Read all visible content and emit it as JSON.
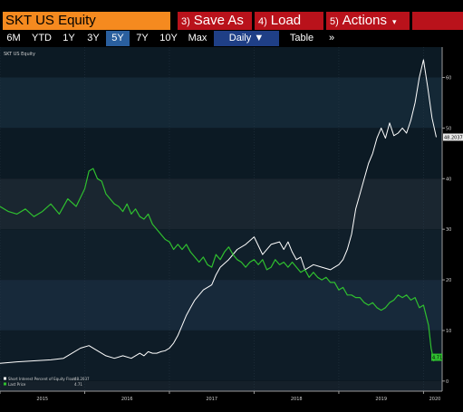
{
  "command_bar": {
    "ticker": "SKT US Equity",
    "save_as": {
      "num": "3)",
      "label": "Save As"
    },
    "load": {
      "num": "4)",
      "label": "Load"
    },
    "actions": {
      "num": "5)",
      "label": "Actions",
      "caret": "▾"
    }
  },
  "range_bar": {
    "items": [
      "6M",
      "YTD",
      "1Y",
      "3Y",
      "5Y",
      "7Y",
      "10Y",
      "Max"
    ],
    "active": "5Y",
    "frequency": "Daily",
    "frequency_caret": "▼",
    "table": "Table",
    "more": "»"
  },
  "colors": {
    "ticker_bg": "#f58a1f",
    "button_red": "#b9121b",
    "active_blue": "#2a5f9e",
    "series_short_interest": "#ffffff",
    "series_price": "#2fbf2f",
    "value_tag": "#e8e8e8",
    "price_tag": "#2fbf2f"
  },
  "chart_data": {
    "type": "line",
    "title": "SKT US Equity",
    "x_ticks": [
      "2015",
      "2016",
      "2017",
      "2018",
      "2019",
      "2020"
    ],
    "y_ticks": [
      "0",
      "10",
      "20",
      "30",
      "40",
      "50",
      "60"
    ],
    "ylim": [
      -2,
      66
    ],
    "xlim": [
      2015.0,
      2020.22
    ],
    "grid": true,
    "legend_position": "bottom-left",
    "last_value_tags": {
      "short_interest": "48.2037",
      "price": "4.71"
    },
    "series": [
      {
        "name": "Short Interest Percent of Equity Float",
        "legend_value": "48.2037",
        "color": "#ffffff",
        "x": [
          2015.0,
          2015.2,
          2015.4,
          2015.6,
          2015.75,
          2015.85,
          2015.95,
          2016.05,
          2016.15,
          2016.25,
          2016.35,
          2016.45,
          2016.55,
          2016.65,
          2016.7,
          2016.75,
          2016.8,
          2016.85,
          2016.9,
          2016.95,
          2017.0,
          2017.05,
          2017.1,
          2017.15,
          2017.2,
          2017.25,
          2017.3,
          2017.4,
          2017.5,
          2017.55,
          2017.6,
          2017.7,
          2017.8,
          2017.9,
          2018.0,
          2018.1,
          2018.2,
          2018.3,
          2018.35,
          2018.4,
          2018.45,
          2018.5,
          2018.55,
          2018.6,
          2018.7,
          2018.8,
          2018.9,
          2018.95,
          2019.0,
          2019.05,
          2019.1,
          2019.15,
          2019.2,
          2019.25,
          2019.3,
          2019.35,
          2019.4,
          2019.45,
          2019.5,
          2019.55,
          2019.6,
          2019.65,
          2019.7,
          2019.75,
          2019.8,
          2019.85,
          2019.9,
          2019.95,
          2020.0,
          2020.05,
          2020.1,
          2020.15
        ],
        "y": [
          3.5,
          3.8,
          4.0,
          4.2,
          4.5,
          5.5,
          6.5,
          7.0,
          6.0,
          5.0,
          4.5,
          5.0,
          4.5,
          5.5,
          5.0,
          5.8,
          5.5,
          5.5,
          5.8,
          6.0,
          6.5,
          7.5,
          9.0,
          11.0,
          13.0,
          14.5,
          16.0,
          18.0,
          19.0,
          21.0,
          22.5,
          24.0,
          26.0,
          27.0,
          28.5,
          25.0,
          27.0,
          27.5,
          26.0,
          27.5,
          25.5,
          24.0,
          24.5,
          22.0,
          23.0,
          22.5,
          22.0,
          22.5,
          23.0,
          24.0,
          26.0,
          29.0,
          34.0,
          37.0,
          40.0,
          43.0,
          45.0,
          48.0,
          50.0,
          48.0,
          51.0,
          48.5,
          49.0,
          50.0,
          49.0,
          51.5,
          55.0,
          60.0,
          63.5,
          58.0,
          52.0,
          48.2
        ]
      },
      {
        "name": "Last Price",
        "legend_value": "4.71",
        "color": "#2fbf2f",
        "x": [
          2015.0,
          2015.1,
          2015.2,
          2015.3,
          2015.4,
          2015.5,
          2015.6,
          2015.7,
          2015.8,
          2015.9,
          2016.0,
          2016.05,
          2016.1,
          2016.15,
          2016.2,
          2016.25,
          2016.3,
          2016.35,
          2016.4,
          2016.45,
          2016.5,
          2016.55,
          2016.6,
          2016.65,
          2016.7,
          2016.75,
          2016.8,
          2016.85,
          2016.9,
          2016.95,
          2017.0,
          2017.05,
          2017.1,
          2017.15,
          2017.2,
          2017.25,
          2017.3,
          2017.35,
          2017.4,
          2017.45,
          2017.5,
          2017.55,
          2017.6,
          2017.65,
          2017.7,
          2017.75,
          2017.8,
          2017.85,
          2017.9,
          2017.95,
          2018.0,
          2018.05,
          2018.1,
          2018.15,
          2018.2,
          2018.25,
          2018.3,
          2018.35,
          2018.4,
          2018.45,
          2018.5,
          2018.55,
          2018.6,
          2018.65,
          2018.7,
          2018.75,
          2018.8,
          2018.85,
          2018.9,
          2018.95,
          2019.0,
          2019.05,
          2019.1,
          2019.15,
          2019.2,
          2019.25,
          2019.3,
          2019.35,
          2019.4,
          2019.45,
          2019.5,
          2019.55,
          2019.6,
          2019.65,
          2019.7,
          2019.75,
          2019.8,
          2019.85,
          2019.9,
          2019.95,
          2020.0,
          2020.03,
          2020.06,
          2020.09,
          2020.12,
          2020.15
        ],
        "y": [
          34.5,
          33.5,
          33.0,
          34.0,
          32.5,
          33.5,
          35.0,
          33.0,
          36.0,
          34.5,
          38.0,
          41.5,
          42.0,
          40.0,
          39.5,
          37.0,
          36.0,
          35.0,
          34.5,
          33.5,
          35.0,
          33.0,
          34.0,
          32.5,
          32.0,
          33.0,
          31.0,
          30.0,
          29.0,
          28.0,
          27.5,
          26.0,
          27.0,
          26.0,
          27.0,
          25.5,
          24.5,
          23.5,
          24.5,
          23.0,
          22.5,
          25.0,
          24.0,
          25.5,
          26.5,
          25.0,
          24.0,
          23.5,
          22.5,
          23.5,
          24.0,
          23.0,
          24.0,
          22.0,
          22.5,
          24.0,
          23.0,
          23.5,
          22.5,
          23.5,
          22.5,
          21.5,
          22.0,
          20.5,
          21.5,
          20.5,
          20.0,
          20.5,
          19.5,
          19.5,
          18.0,
          18.5,
          17.0,
          17.0,
          16.5,
          16.5,
          15.5,
          15.0,
          15.5,
          14.5,
          14.0,
          14.5,
          15.5,
          16.0,
          17.0,
          16.5,
          17.0,
          16.0,
          16.5,
          14.5,
          15.0,
          13.0,
          11.0,
          6.5,
          4.0,
          4.7
        ]
      }
    ]
  }
}
